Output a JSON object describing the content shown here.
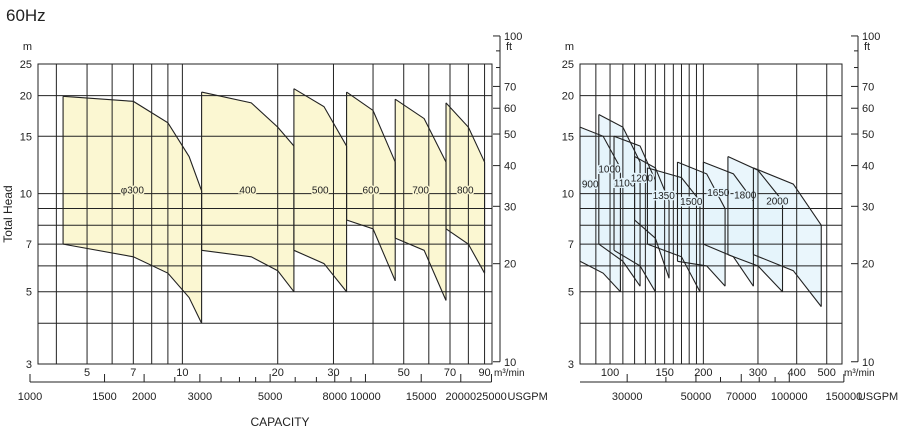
{
  "header": {
    "frequency": "60Hz"
  },
  "footer": {
    "capacity_label": "CAPACITY"
  },
  "colors": {
    "left_fill": "#fbf7d2",
    "right_fill": "#e3f3fb",
    "grid": "#222222",
    "curve": "#222222"
  },
  "chart_data": [
    {
      "type": "area",
      "title": "",
      "ylabel": "Total Head",
      "y_unit_left": "m",
      "y_unit_right": "ft",
      "x_unit": "m³/min",
      "x2_unit": "USGPM",
      "x_scale": "log",
      "y_scale": "log",
      "xlim": [
        3.5,
        95
      ],
      "ylim": [
        3,
        25
      ],
      "y_ticks": [
        3,
        5,
        7,
        10,
        15,
        20,
        25
      ],
      "y2_ticks": [
        10,
        20,
        30,
        40,
        50,
        60,
        70,
        100
      ],
      "x_ticks": [
        5,
        7,
        10,
        20,
        30,
        50,
        70,
        90
      ],
      "x2_ticks": [
        1000,
        1500,
        2000,
        3000,
        5000,
        8000,
        10000,
        15000,
        20000,
        25000
      ],
      "x_grid": [
        4,
        5,
        6,
        7,
        8,
        9,
        10,
        20,
        30,
        40,
        50,
        60,
        70,
        80,
        90
      ],
      "y_grid": [
        4,
        5,
        6,
        7,
        8,
        9,
        10,
        15,
        20,
        25
      ],
      "grid": true,
      "series": [
        {
          "name": "φ300",
          "x_min": 4.2,
          "x_max": 11.5,
          "upper": [
            [
              4.2,
              19.9
            ],
            [
              7.0,
              19.2
            ],
            [
              9.0,
              16.5
            ],
            [
              10.5,
              13.0
            ],
            [
              11.5,
              10.2
            ]
          ],
          "lower": [
            [
              4.2,
              7.0
            ],
            [
              7.0,
              6.4
            ],
            [
              9.0,
              5.7
            ],
            [
              10.5,
              4.8
            ],
            [
              11.5,
              4.0
            ]
          ]
        },
        {
          "name": "400",
          "x_min": 11.5,
          "x_max": 22.5,
          "upper": [
            [
              11.5,
              20.5
            ],
            [
              16.5,
              19.0
            ],
            [
              20.0,
              16.0
            ],
            [
              22.5,
              14.0
            ]
          ],
          "lower": [
            [
              11.5,
              6.7
            ],
            [
              16.5,
              6.4
            ],
            [
              20.0,
              5.8
            ],
            [
              22.5,
              5.0
            ]
          ]
        },
        {
          "name": "500",
          "x_min": 22.5,
          "x_max": 33.0,
          "upper": [
            [
              22.5,
              21.0
            ],
            [
              28.0,
              18.5
            ],
            [
              33.0,
              14.0
            ]
          ],
          "lower": [
            [
              22.5,
              6.7
            ],
            [
              28.0,
              6.1
            ],
            [
              33.0,
              5.0
            ]
          ]
        },
        {
          "name": "600",
          "x_min": 33.0,
          "x_max": 47.0,
          "upper": [
            [
              33.0,
              20.5
            ],
            [
              40.0,
              18.0
            ],
            [
              47.0,
              12.5
            ]
          ],
          "lower": [
            [
              33.0,
              8.3
            ],
            [
              40.0,
              7.8
            ],
            [
              47.0,
              5.4
            ]
          ]
        },
        {
          "name": "700",
          "x_min": 47.0,
          "x_max": 68.0,
          "upper": [
            [
              47.0,
              19.5
            ],
            [
              58.0,
              17.0
            ],
            [
              68.0,
              12.5
            ]
          ],
          "lower": [
            [
              47.0,
              7.3
            ],
            [
              58.0,
              6.7
            ],
            [
              68.0,
              4.7
            ]
          ]
        },
        {
          "name": "800",
          "x_min": 68.0,
          "x_max": 90.0,
          "upper": [
            [
              68.0,
              19.0
            ],
            [
              80.0,
              16.0
            ],
            [
              90.0,
              12.5
            ]
          ],
          "lower": [
            [
              68.0,
              7.8
            ],
            [
              80.0,
              7.0
            ],
            [
              90.0,
              5.7
            ]
          ]
        }
      ]
    },
    {
      "type": "area",
      "title": "",
      "ylabel": "",
      "y_unit_left": "m",
      "y_unit_right": "ft",
      "x_unit": "m³/min",
      "x2_unit": "USGPM",
      "x_scale": "log",
      "y_scale": "log",
      "xlim": [
        80,
        560
      ],
      "ylim": [
        3,
        25
      ],
      "y_ticks": [
        3,
        5,
        7,
        10,
        15,
        20,
        25
      ],
      "y2_ticks": [
        10,
        20,
        30,
        40,
        50,
        60,
        70,
        100
      ],
      "x_ticks": [
        100,
        150,
        200,
        300,
        400,
        500
      ],
      "x2_ticks": [
        30000,
        50000,
        70000,
        100000,
        150000
      ],
      "x_grid": [
        80,
        90,
        100,
        110,
        120,
        130,
        140,
        150,
        160,
        170,
        180,
        190,
        200,
        300,
        400,
        500
      ],
      "y_grid": [
        4,
        5,
        6,
        7,
        8,
        9,
        10,
        15,
        20,
        25
      ],
      "grid": true,
      "series": [
        {
          "name": "900",
          "x_min": 80,
          "x_max": 108,
          "upper": [
            [
              80,
              16.0
            ],
            [
              95,
              15.0
            ],
            [
              108,
              12.0
            ]
          ],
          "lower": [
            [
              80,
              6.2
            ],
            [
              95,
              5.7
            ],
            [
              108,
              5.0
            ]
          ]
        },
        {
          "name": "1000",
          "x_min": 92,
          "x_max": 125,
          "upper": [
            [
              92,
              17.5
            ],
            [
              110,
              16.0
            ],
            [
              125,
              12.5
            ]
          ],
          "lower": [
            [
              92,
              7.0
            ],
            [
              110,
              6.2
            ],
            [
              125,
              5.2
            ]
          ]
        },
        {
          "name": "1100",
          "x_min": 103,
          "x_max": 140,
          "upper": [
            [
              103,
              15.0
            ],
            [
              125,
              14.0
            ],
            [
              140,
              11.0
            ]
          ],
          "lower": [
            [
              103,
              6.7
            ],
            [
              125,
              6.0
            ],
            [
              140,
              5.0
            ]
          ]
        },
        {
          "name": "1200",
          "x_min": 120,
          "x_max": 155,
          "upper": [
            [
              120,
              13.0
            ],
            [
              140,
              12.0
            ],
            [
              155,
              9.5
            ]
          ],
          "lower": [
            [
              120,
              8.3
            ],
            [
              140,
              7.3
            ],
            [
              155,
              5.5
            ]
          ]
        },
        {
          "name": "1350",
          "x_min": 132,
          "x_max": 195,
          "upper": [
            [
              132,
              12.0
            ],
            [
              170,
              11.2
            ],
            [
              195,
              9.5
            ]
          ],
          "lower": [
            [
              132,
              7.0
            ],
            [
              170,
              6.4
            ],
            [
              195,
              5.0
            ]
          ]
        },
        {
          "name": "1500",
          "x_min": 165,
          "x_max": 235,
          "upper": [
            [
              165,
              12.5
            ],
            [
              205,
              11.5
            ],
            [
              235,
              9.0
            ]
          ],
          "lower": [
            [
              165,
              6.2
            ],
            [
              205,
              6.0
            ],
            [
              235,
              5.2
            ]
          ]
        },
        {
          "name": "1650",
          "x_min": 200,
          "x_max": 290,
          "upper": [
            [
              200,
              12.5
            ],
            [
              250,
              11.5
            ],
            [
              290,
              9.5
            ]
          ],
          "lower": [
            [
              200,
              7.0
            ],
            [
              250,
              6.4
            ],
            [
              290,
              5.2
            ]
          ]
        },
        {
          "name": "1800",
          "x_min": 240,
          "x_max": 360,
          "upper": [
            [
              240,
              13.0
            ],
            [
              300,
              11.8
            ],
            [
              360,
              9.5
            ]
          ],
          "lower": [
            [
              240,
              6.5
            ],
            [
              300,
              6.0
            ],
            [
              360,
              5.0
            ]
          ]
        },
        {
          "name": "2000",
          "x_min": 290,
          "x_max": 480,
          "upper": [
            [
              290,
              12.0
            ],
            [
              390,
              10.7
            ],
            [
              480,
              8.0
            ]
          ],
          "lower": [
            [
              290,
              6.5
            ],
            [
              390,
              5.8
            ],
            [
              480,
              4.5
            ]
          ]
        }
      ]
    }
  ]
}
